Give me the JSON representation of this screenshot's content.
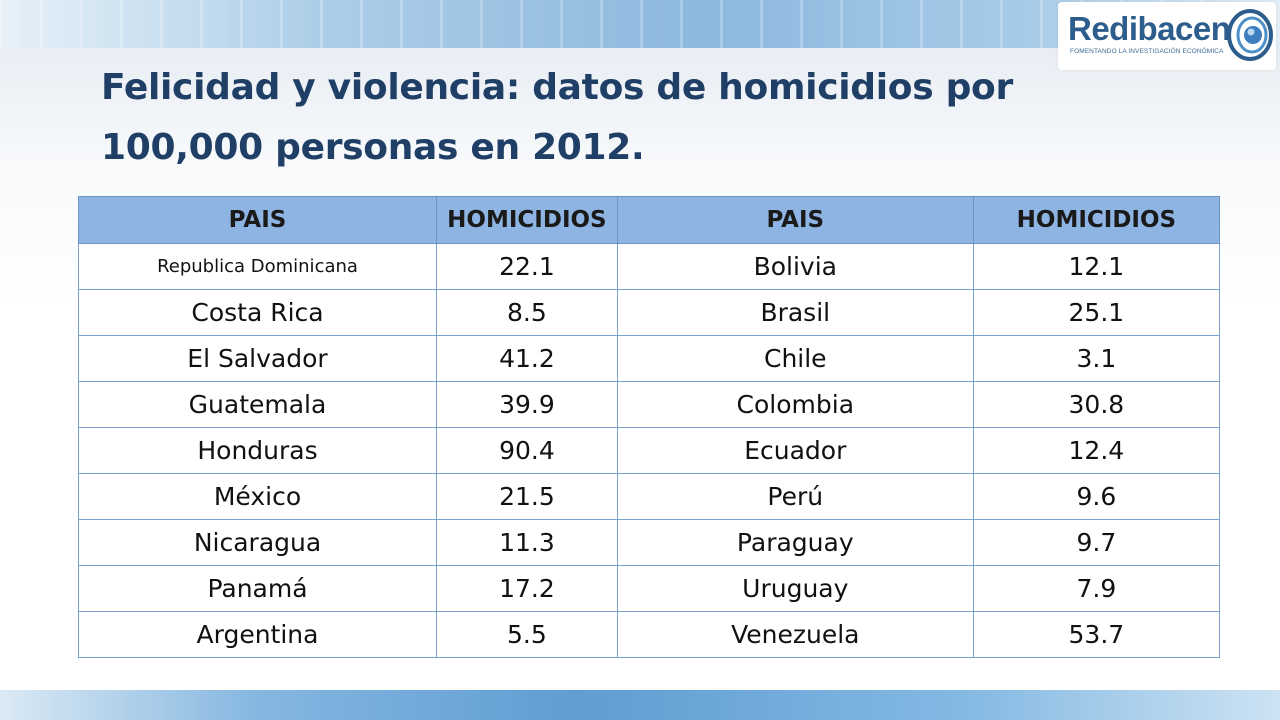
{
  "title": "Felicidad y violencia: datos de homicidios por 100,000 personas en 2012.",
  "logo": {
    "name": "Redibacen",
    "tagline": "FOMENTANDO LA INVESTIGACIÓN ECONÓMICA"
  },
  "table": {
    "headers": [
      "PAIS",
      "HOMICIDIOS",
      "PAIS",
      "HOMICIDIOS"
    ],
    "rows": [
      [
        "Republica Dominicana",
        "22.1",
        "Bolivia",
        "12.1"
      ],
      [
        "Costa Rica",
        "8.5",
        "Brasil",
        "25.1"
      ],
      [
        "El Salvador",
        "41.2",
        "Chile",
        "3.1"
      ],
      [
        "Guatemala",
        "39.9",
        "Colombia",
        "30.8"
      ],
      [
        "Honduras",
        "90.4",
        "Ecuador",
        "12.4"
      ],
      [
        "México",
        "21.5",
        "Perú",
        "9.6"
      ],
      [
        "Nicaragua",
        "11.3",
        "Paraguay",
        "9.7"
      ],
      [
        "Panamá",
        "17.2",
        "Uruguay",
        "7.9"
      ],
      [
        "Argentina",
        "5.5",
        "Venezuela",
        "53.7"
      ]
    ]
  },
  "colors": {
    "title": "#1f3f66",
    "header_fill": "#8eb4e3",
    "border": "#7aa0d0"
  }
}
